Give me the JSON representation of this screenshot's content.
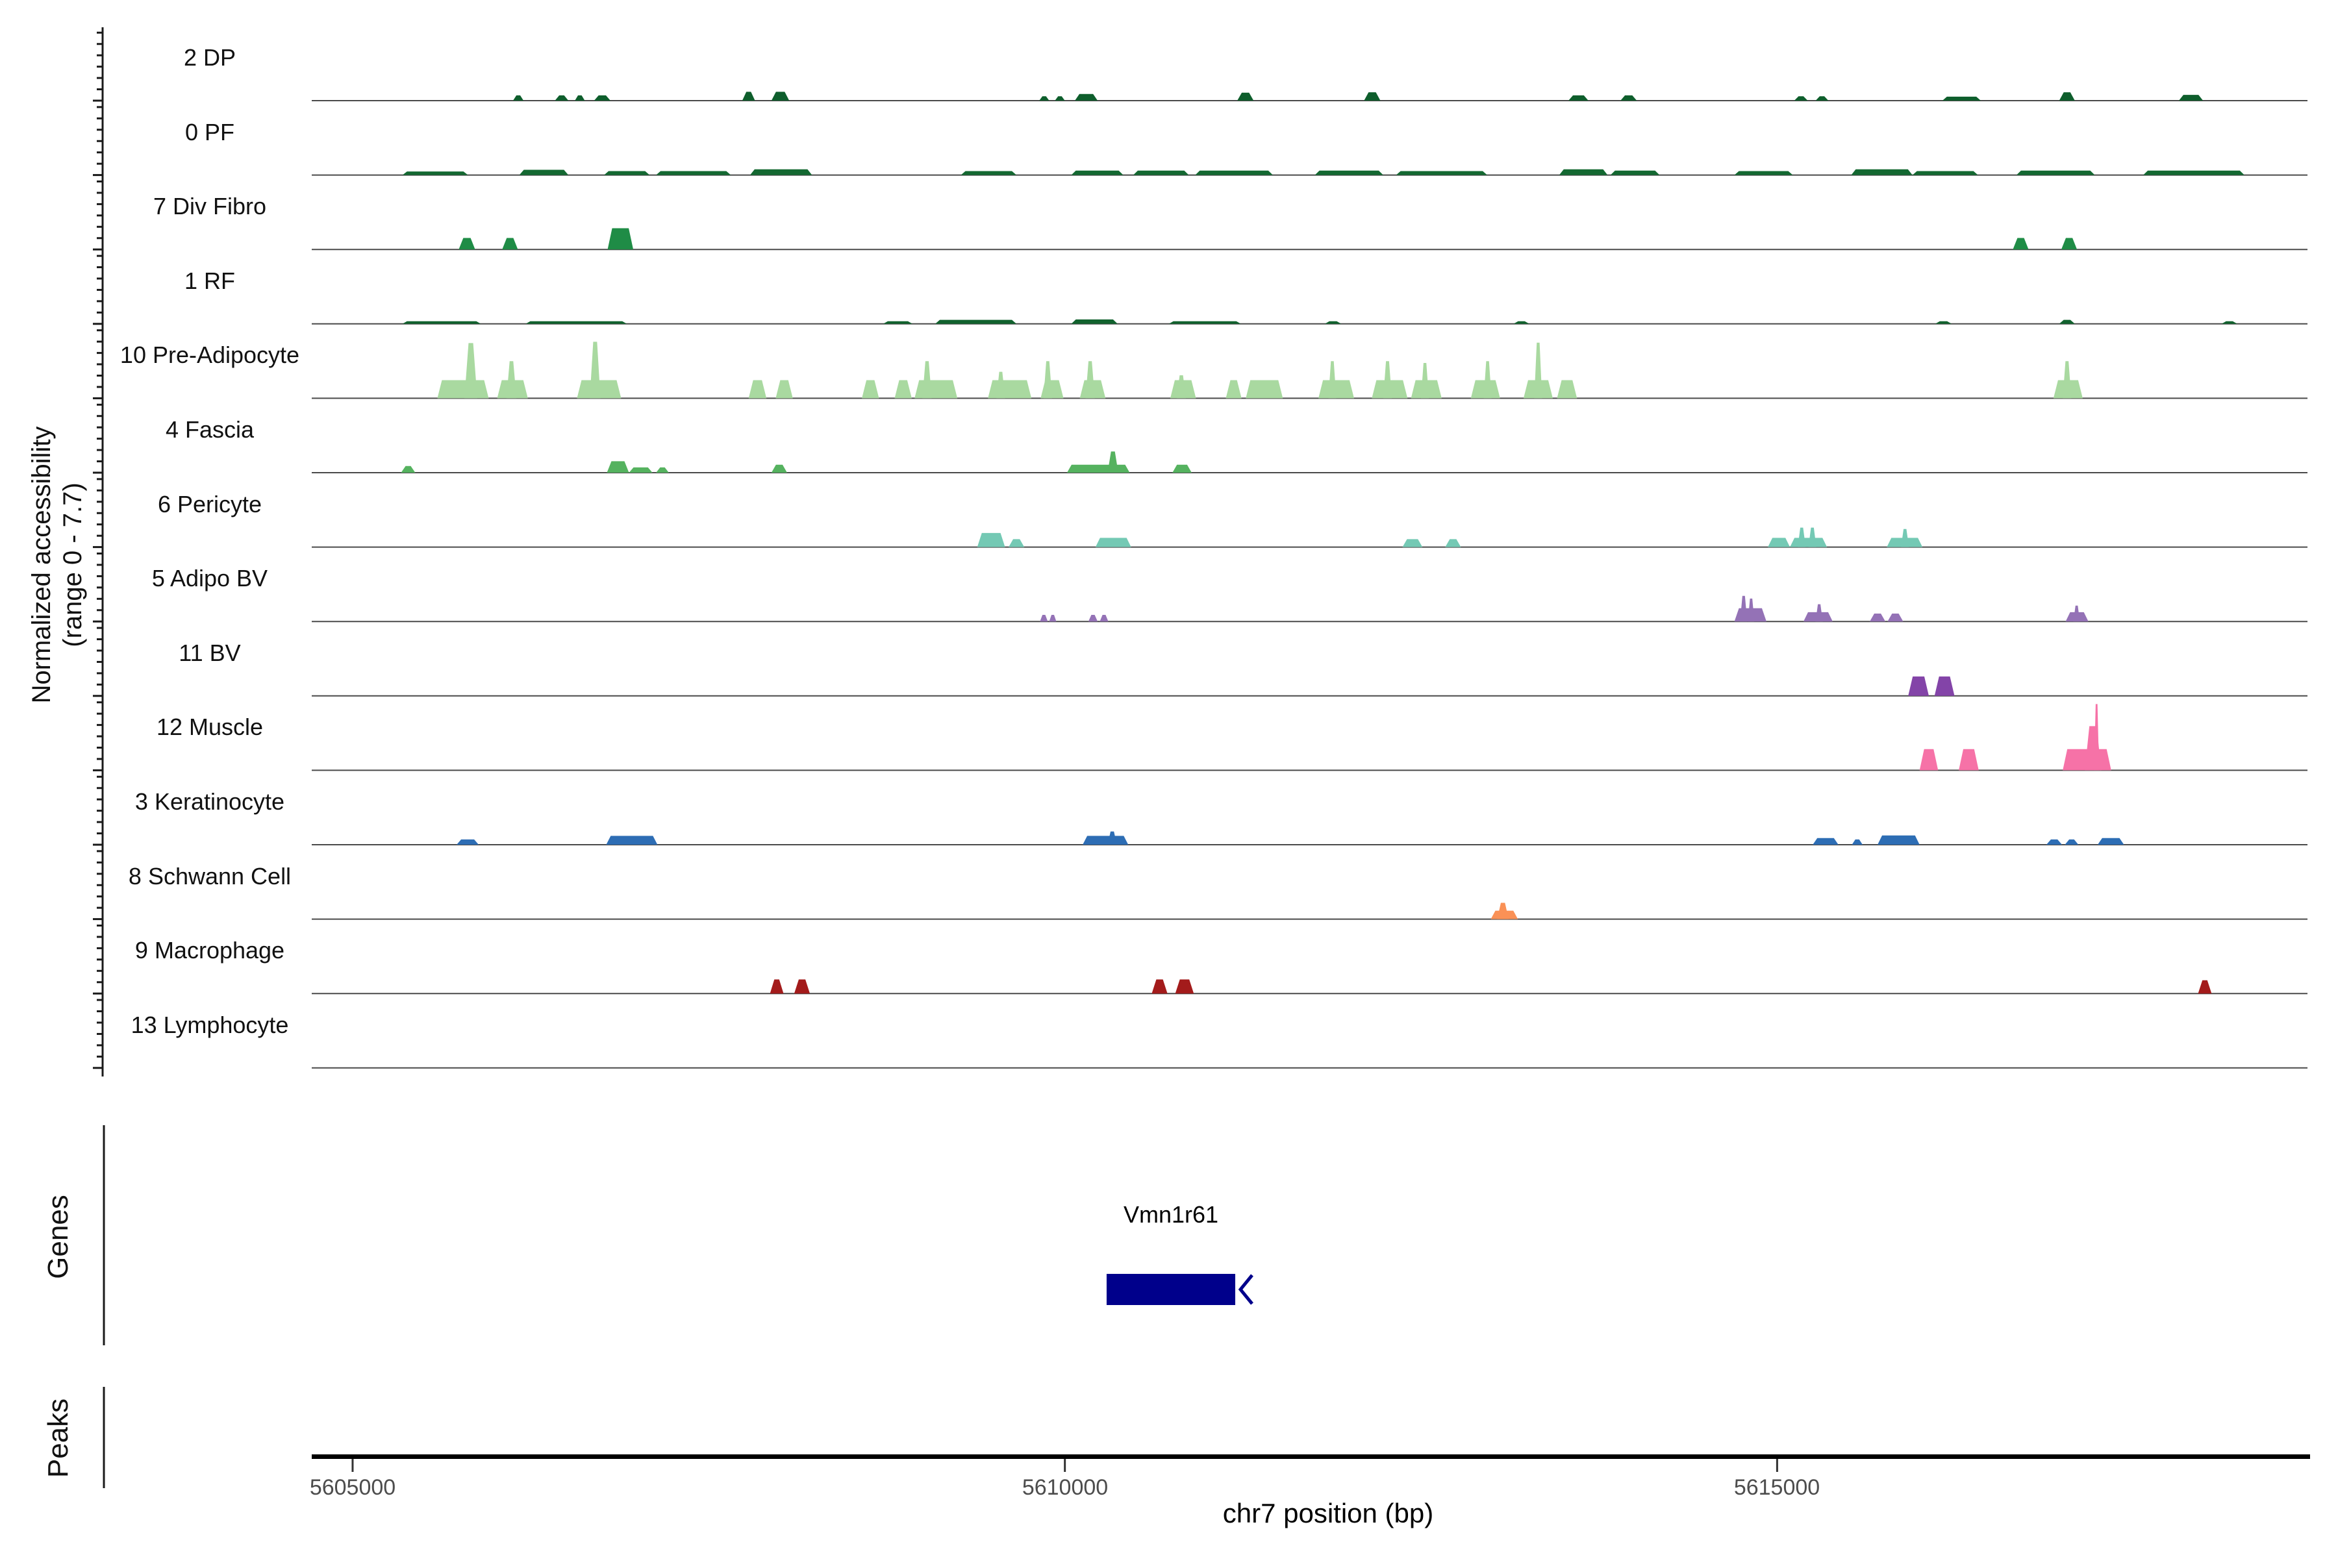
{
  "labels": {
    "y_axis_line1": "Normalized accessibility",
    "y_axis_line2": "(range 0 - 7.7)",
    "genes_section": "Genes",
    "peaks_section": "Peaks",
    "x_axis_title": "chr7 position (bp)"
  },
  "chart_data": {
    "type": "area",
    "subtype": "genome-accessibility-tracks",
    "xlabel": "chr7 position (bp)",
    "ylabel": "Normalized accessibility (range 0 - 7.7)",
    "region": {
      "chrom": "chr7",
      "start": 5604713,
      "end": 5618723
    },
    "x_ticks": [
      5605000,
      5610000,
      5615000
    ],
    "x_tick_labels": [
      "5605000",
      "5610000",
      "5615000"
    ],
    "track_value_range": [
      0,
      7.7
    ],
    "grid": false,
    "tracks": [
      {
        "label": "2 DP",
        "color": "#0e5e2c",
        "peaks": [
          [
            5606126,
            5606200,
            0.6
          ],
          [
            5606420,
            5606515,
            0.6
          ],
          [
            5606560,
            5606630,
            0.6
          ],
          [
            5606695,
            5606810,
            0.6
          ],
          [
            5607735,
            5607825,
            1.0
          ],
          [
            5607940,
            5608065,
            1.0
          ],
          [
            5609820,
            5609890,
            0.5
          ],
          [
            5609930,
            5610000,
            0.5
          ],
          [
            5610070,
            5610230,
            0.75
          ],
          [
            5611210,
            5611325,
            0.9
          ],
          [
            5612100,
            5612215,
            0.95
          ],
          [
            5613535,
            5613675,
            0.6
          ],
          [
            5613900,
            5614015,
            0.6
          ],
          [
            5615120,
            5615215,
            0.5
          ],
          [
            5615270,
            5615360,
            0.5
          ],
          [
            5616160,
            5616430,
            0.45
          ],
          [
            5616980,
            5617090,
            0.95
          ],
          [
            5617820,
            5617990,
            0.65
          ]
        ]
      },
      {
        "label": "0 PF",
        "color": "#136831",
        "peaks": [
          [
            5605350,
            5605810,
            0.4
          ],
          [
            5606170,
            5606515,
            0.6
          ],
          [
            5606765,
            5607085,
            0.45
          ],
          [
            5607130,
            5607655,
            0.45
          ],
          [
            5607790,
            5608225,
            0.65
          ],
          [
            5609270,
            5609660,
            0.45
          ],
          [
            5610045,
            5610410,
            0.5
          ],
          [
            5610480,
            5610870,
            0.5
          ],
          [
            5610915,
            5611460,
            0.5
          ],
          [
            5611755,
            5612235,
            0.5
          ],
          [
            5612325,
            5612965,
            0.45
          ],
          [
            5613470,
            5613810,
            0.65
          ],
          [
            5613830,
            5614175,
            0.5
          ],
          [
            5614700,
            5615110,
            0.45
          ],
          [
            5615520,
            5615950,
            0.65
          ],
          [
            5615950,
            5616410,
            0.45
          ],
          [
            5616680,
            5617230,
            0.5
          ],
          [
            5617570,
            5618280,
            0.5
          ]
        ]
      },
      {
        "label": "7 Div Fibro",
        "color": "#1f8c46",
        "peaks": [
          [
            5605745,
            5605860,
            1.3
          ],
          [
            5606050,
            5606160,
            1.3
          ],
          [
            5606790,
            5606970,
            2.4
          ],
          [
            5616655,
            5616765,
            1.3
          ],
          [
            5616995,
            5617105,
            1.3
          ]
        ]
      },
      {
        "label": "1 RF",
        "color": "#11622e",
        "peaks": [
          [
            5605350,
            5605900,
            0.3
          ],
          [
            5606215,
            5606925,
            0.3
          ],
          [
            5608725,
            5608930,
            0.3
          ],
          [
            5609090,
            5609660,
            0.45
          ],
          [
            5610045,
            5610370,
            0.5
          ],
          [
            5610730,
            5611235,
            0.3
          ],
          [
            5611825,
            5611940,
            0.3
          ],
          [
            5613150,
            5613260,
            0.3
          ],
          [
            5616110,
            5616225,
            0.3
          ],
          [
            5616980,
            5617090,
            0.45
          ],
          [
            5618120,
            5618230,
            0.3
          ]
        ]
      },
      {
        "label": "10 Pre-Adipocyte",
        "color": "#a9d9a0",
        "peaks": [
          [
            5605595,
            5605955,
            2.05
          ],
          [
            5605785,
            5605875,
            6.25
          ],
          [
            5606015,
            5606230,
            2.05
          ],
          [
            5606080,
            5606150,
            4.2
          ],
          [
            5606575,
            5606885,
            2.05
          ],
          [
            5606665,
            5606740,
            6.4
          ],
          [
            5607780,
            5607905,
            2.05
          ],
          [
            5607970,
            5608090,
            2.05
          ],
          [
            5608575,
            5608695,
            2.05
          ],
          [
            5608805,
            5608925,
            2.05
          ],
          [
            5608945,
            5609245,
            2.05
          ],
          [
            5609000,
            5609065,
            4.2
          ],
          [
            5609460,
            5609765,
            2.05
          ],
          [
            5609520,
            5609580,
            3.0
          ],
          [
            5609830,
            5609990,
            2.05
          ],
          [
            5609850,
            5609910,
            4.2
          ],
          [
            5610105,
            5610285,
            2.05
          ],
          [
            5610145,
            5610210,
            4.2
          ],
          [
            5610740,
            5610920,
            2.05
          ],
          [
            5610785,
            5610850,
            2.6
          ],
          [
            5611130,
            5611240,
            2.05
          ],
          [
            5611270,
            5611530,
            2.05
          ],
          [
            5611780,
            5612030,
            2.05
          ],
          [
            5611850,
            5611905,
            4.2
          ],
          [
            5612155,
            5612405,
            2.05
          ],
          [
            5612235,
            5612295,
            4.2
          ],
          [
            5612430,
            5612645,
            2.05
          ],
          [
            5612500,
            5612555,
            4.0
          ],
          [
            5612850,
            5613055,
            2.05
          ],
          [
            5612940,
            5612995,
            4.2
          ],
          [
            5613220,
            5613425,
            2.05
          ],
          [
            5613295,
            5613350,
            6.3
          ],
          [
            5613455,
            5613595,
            2.05
          ],
          [
            5616940,
            5617145,
            2.05
          ],
          [
            5617005,
            5617065,
            4.2
          ]
        ]
      },
      {
        "label": "4 Fascia",
        "color": "#55b25f",
        "peaks": [
          [
            5605340,
            5605440,
            0.75
          ],
          [
            5606785,
            5606940,
            1.3
          ],
          [
            5606940,
            5607105,
            0.6
          ],
          [
            5607130,
            5607220,
            0.6
          ],
          [
            5607940,
            5608050,
            0.9
          ],
          [
            5610015,
            5610455,
            0.9
          ],
          [
            5610300,
            5610375,
            2.4
          ],
          [
            5610755,
            5610890,
            0.9
          ]
        ]
      },
      {
        "label": "6 Pericyte",
        "color": "#74c9b4",
        "peaks": [
          [
            5609385,
            5609580,
            1.6
          ],
          [
            5609605,
            5609715,
            0.9
          ],
          [
            5610215,
            5610465,
            1.05
          ],
          [
            5612370,
            5612510,
            0.9
          ],
          [
            5612670,
            5612780,
            0.9
          ],
          [
            5614935,
            5615090,
            1.05
          ],
          [
            5615090,
            5615350,
            1.05
          ],
          [
            5615145,
            5615200,
            2.2
          ],
          [
            5615220,
            5615275,
            2.2
          ],
          [
            5615770,
            5616020,
            1.05
          ],
          [
            5615870,
            5615925,
            2.05
          ]
        ]
      },
      {
        "label": "5 Adipo BV",
        "color": "#9472b6",
        "peaks": [
          [
            5609825,
            5609880,
            0.75
          ],
          [
            5609890,
            5609940,
            0.75
          ],
          [
            5610165,
            5610230,
            0.75
          ],
          [
            5610245,
            5610305,
            0.75
          ],
          [
            5614700,
            5614925,
            1.5
          ],
          [
            5614740,
            5614790,
            2.9
          ],
          [
            5614795,
            5614840,
            2.6
          ],
          [
            5615185,
            5615390,
            1.05
          ],
          [
            5615270,
            5615320,
            1.95
          ],
          [
            5615650,
            5615760,
            0.9
          ],
          [
            5615775,
            5615885,
            0.9
          ],
          [
            5617025,
            5617185,
            1.05
          ],
          [
            5617080,
            5617125,
            1.8
          ]
        ]
      },
      {
        "label": "11 BV",
        "color": "#8344a8",
        "peaks": [
          [
            5615920,
            5616065,
            2.2
          ],
          [
            5616105,
            5616245,
            2.2
          ]
        ]
      },
      {
        "label": "12 Muscle",
        "color": "#f672a7",
        "peaks": [
          [
            5616000,
            5616130,
            2.4
          ],
          [
            5616275,
            5616415,
            2.4
          ],
          [
            5617005,
            5617345,
            2.4
          ],
          [
            5617160,
            5617275,
            5.0
          ],
          [
            5617225,
            5617260,
            7.5
          ]
        ]
      },
      {
        "label": "3 Keratinocyte",
        "color": "#2d6db4",
        "peaks": [
          [
            5605730,
            5605885,
            0.6
          ],
          [
            5606780,
            5607140,
            1.0
          ],
          [
            5610125,
            5610445,
            1.0
          ],
          [
            5610300,
            5610365,
            1.5
          ],
          [
            5615250,
            5615430,
            0.75
          ],
          [
            5615525,
            5615600,
            0.6
          ],
          [
            5615705,
            5616000,
            1.05
          ],
          [
            5616890,
            5617000,
            0.6
          ],
          [
            5617020,
            5617115,
            0.6
          ],
          [
            5617250,
            5617435,
            0.75
          ]
        ]
      },
      {
        "label": "8 Schwann Cell",
        "color": "#fa9156",
        "peaks": [
          [
            5612990,
            5613180,
            0.95
          ],
          [
            5613035,
            5613115,
            1.85
          ]
        ]
      },
      {
        "label": "9 Macrophage",
        "color": "#a31b1b",
        "peaks": [
          [
            5607930,
            5608025,
            1.6
          ],
          [
            5608100,
            5608210,
            1.6
          ],
          [
            5610610,
            5610720,
            1.6
          ],
          [
            5610775,
            5610905,
            1.6
          ],
          [
            5617955,
            5618050,
            1.5
          ]
        ]
      },
      {
        "label": "13 Lymphocyte",
        "color": "#888888",
        "peaks": []
      }
    ],
    "genes": [
      {
        "name": "Vmn1r61",
        "start": 5610293,
        "end": 5611196,
        "strand": "-",
        "color": "#00008b"
      }
    ],
    "peaks_track": []
  }
}
